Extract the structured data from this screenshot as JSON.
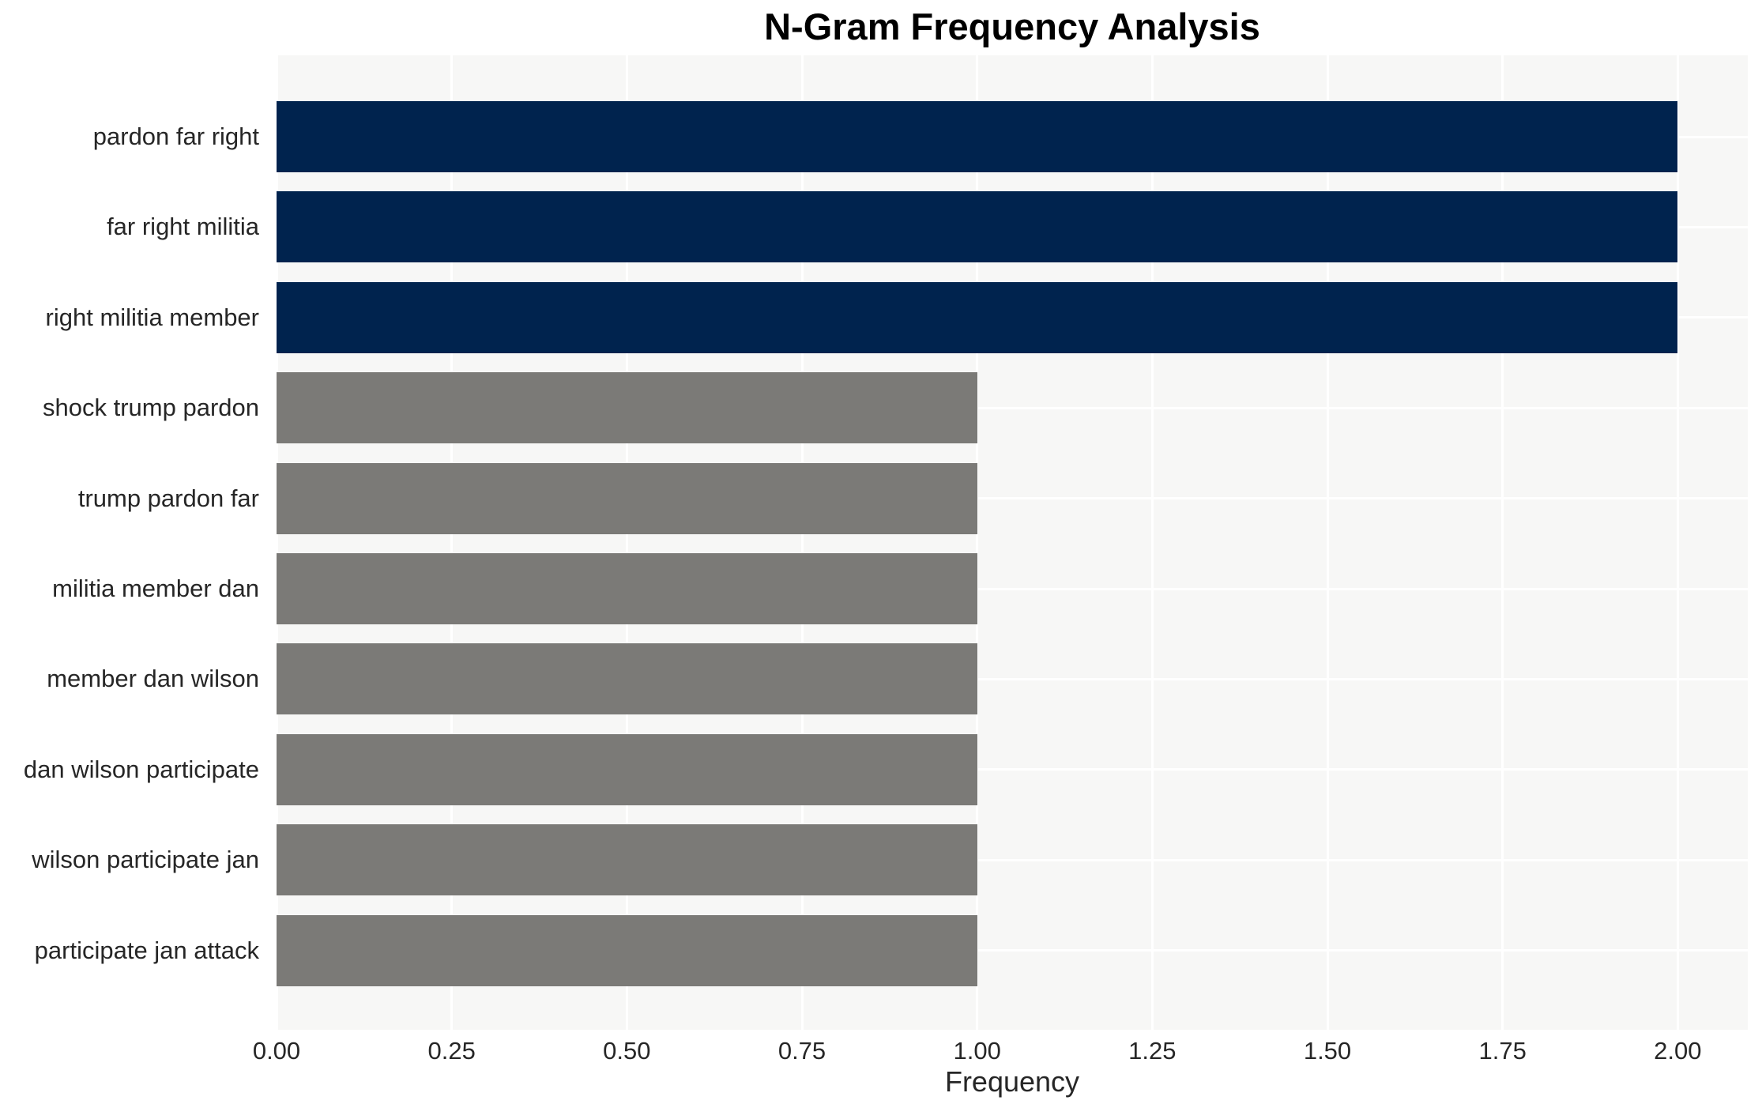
{
  "chart_data": {
    "type": "bar",
    "orientation": "horizontal",
    "title": "N-Gram Frequency Analysis",
    "xlabel": "Frequency",
    "ylabel": "",
    "categories": [
      "pardon far right",
      "far right militia",
      "right militia member",
      "shock trump pardon",
      "trump pardon far",
      "militia member dan",
      "member dan wilson",
      "dan wilson participate",
      "wilson participate jan",
      "participate jan attack"
    ],
    "values": [
      2,
      2,
      2,
      1,
      1,
      1,
      1,
      1,
      1,
      1
    ],
    "xlim": [
      0,
      2.1
    ],
    "xticks": [
      0,
      0.25,
      0.5,
      0.75,
      1,
      1.25,
      1.5,
      1.75,
      2
    ],
    "xtick_labels": [
      "0.00",
      "0.25",
      "0.50",
      "0.75",
      "1.00",
      "1.25",
      "1.50",
      "1.75",
      "2.00"
    ],
    "grid": true,
    "legend": false,
    "bar_colors": [
      "#00234e",
      "#00234e",
      "#00234e",
      "#7b7a77",
      "#7b7a77",
      "#7b7a77",
      "#7b7a77",
      "#7b7a77",
      "#7b7a77",
      "#7b7a77"
    ],
    "colors": {
      "high_frequency_bar": "#00234e",
      "low_frequency_bar": "#7b7a77",
      "plot_background": "#f7f7f6",
      "gridline": "#ffffff",
      "text": "#262626",
      "title": "#000000"
    }
  }
}
